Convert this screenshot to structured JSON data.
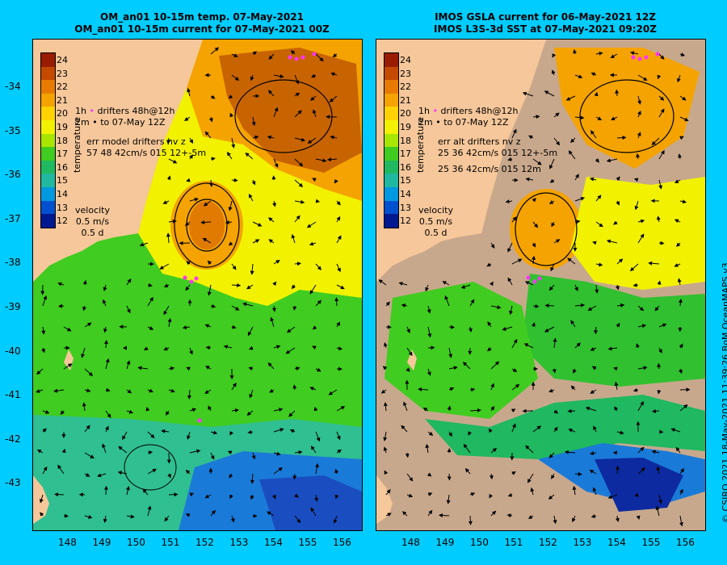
{
  "titles": {
    "left_line1": "OM_an01 10-15m temp. 07-May-2021",
    "left_line2": "OM_an01 10-15m current for 07-May-2021 00Z",
    "right_line1": "IMOS GSLA current for 06-May-2021 12Z",
    "right_line2": "IMOS L3S-3d SST at 07-May-2021 09:20Z"
  },
  "axes": {
    "lat_labels": [
      "-34",
      "-35",
      "-36",
      "-37",
      "-38",
      "-39",
      "-40",
      "-41",
      "-42",
      "-43"
    ],
    "lon_labels": [
      "148",
      "149",
      "150",
      "151",
      "152",
      "153",
      "154",
      "155",
      "156"
    ],
    "lon_range": [
      147.0,
      156.6
    ],
    "lat_range": [
      -44.0,
      -33.1
    ]
  },
  "colorbar": {
    "label": "temperature",
    "ticks": [
      "24",
      "23",
      "22",
      "21",
      "20",
      "19",
      "18",
      "17",
      "16",
      "15",
      "14",
      "13",
      "12"
    ],
    "colors": [
      "#9a1c00",
      "#c44a00",
      "#e87a00",
      "#f4a300",
      "#ffd200",
      "#f2f200",
      "#a8e600",
      "#40cc20",
      "#20b860",
      "#20b8a0",
      "#0098e0",
      "#0050d0",
      "#001890"
    ]
  },
  "legend_left": {
    "drifter_line1": "drifters 48h@12h",
    "drifter_line2": "to 07-May 12Z",
    "drifter_prefix1": "1h",
    "drifter_prefix2": "2m",
    "err_line1": "err model drifters nv z",
    "err_line2": "57 48 42cm/s 015 12+-5m",
    "velocity": "velocity",
    "vel_scale": "0.5 m/s",
    "vel_time": "0.5 d"
  },
  "legend_right": {
    "drifter_line1": "drifters 48h@12h",
    "drifter_line2": "to 07-May 12Z",
    "drifter_prefix1": "1h",
    "drifter_prefix2": "2m",
    "err_line1": "err alt drifters nv z",
    "err_line2": "25 36 42cm/s 015 12+-5m",
    "err_line3": "25 36 42cm/s 015 12m",
    "velocity": "velocity",
    "vel_scale": "0.5 m/s",
    "vel_time": "0.5 d"
  },
  "credit": "© CSIRO 2021   18-May-2021 11:39:26 BoM OceanMAPS v3",
  "colors": {
    "background": "#00ccff",
    "land": "#f6c79a",
    "cloud_mask": "#c8a88c",
    "drifter": "#ff33ff"
  }
}
